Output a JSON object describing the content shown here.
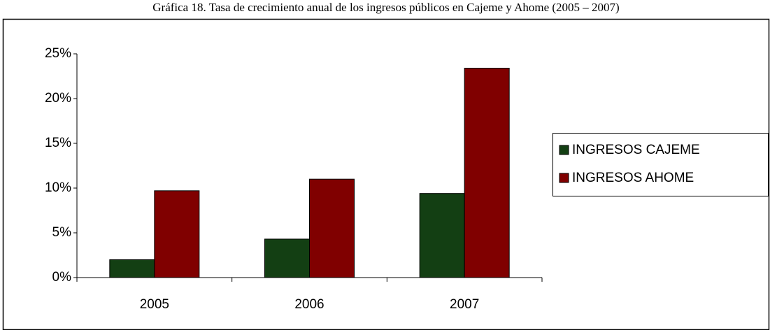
{
  "chart_data": {
    "type": "bar",
    "title": "Gráfica 18. Tasa de crecimiento anual de los ingresos públicos en Cajeme y Ahome (2005 – 2007)",
    "categories": [
      "2005",
      "2006",
      "2007"
    ],
    "series": [
      {
        "name": "INGRESOS CAJEME",
        "color": "#133f13",
        "values": [
          2.0,
          4.3,
          9.4
        ]
      },
      {
        "name": "INGRESOS AHOME",
        "color": "#800000",
        "values": [
          9.7,
          11.0,
          23.4
        ]
      }
    ],
    "ylim": [
      0,
      25
    ],
    "yticks": [
      {
        "value": 0,
        "label": "0%"
      },
      {
        "value": 5,
        "label": "5%"
      },
      {
        "value": 10,
        "label": "10%"
      },
      {
        "value": 15,
        "label": "15%"
      },
      {
        "value": 20,
        "label": "20%"
      },
      {
        "value": 25,
        "label": "25%"
      }
    ],
    "grid": false,
    "legend": "right"
  }
}
